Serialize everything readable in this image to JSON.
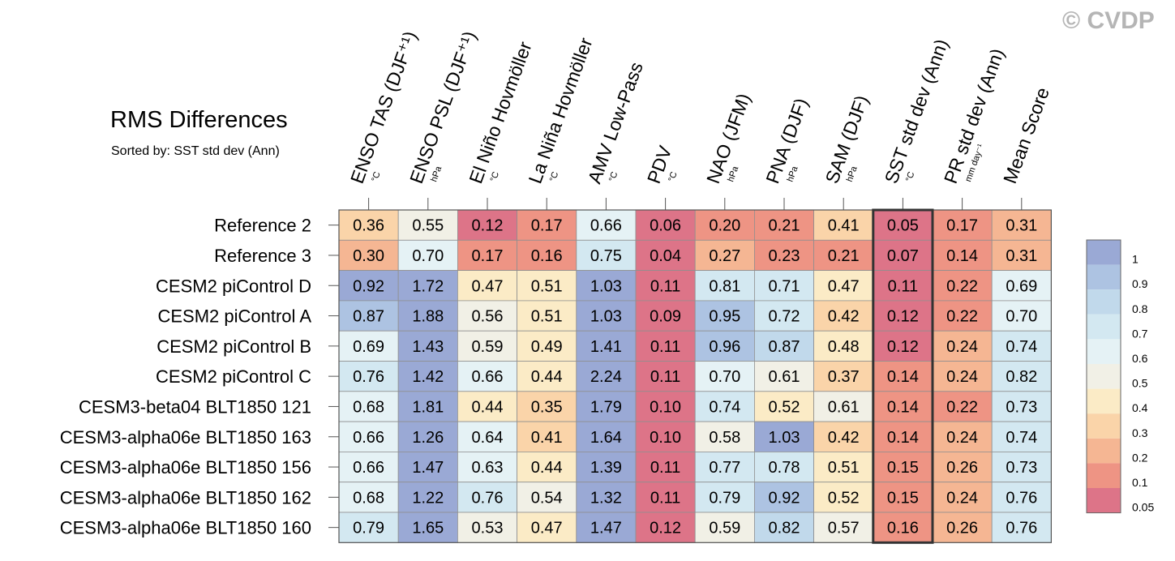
{
  "watermark": "© CVDP",
  "chart_data": {
    "type": "heatmap",
    "title": "RMS Differences",
    "subtitle": "Sorted by: SST std dev (Ann)",
    "columns": [
      {
        "label": "ENSO TAS (DJF⁺¹)",
        "unit": "°C"
      },
      {
        "label": "ENSO PSL (DJF⁺¹)",
        "unit": "hPa"
      },
      {
        "label": "El Niño Hovmöller",
        "unit": "°C"
      },
      {
        "label": "La Niña Hovmöller",
        "unit": "°C"
      },
      {
        "label": "AMV Low-Pass",
        "unit": "°C"
      },
      {
        "label": "PDV",
        "unit": "°C"
      },
      {
        "label": "NAO (JFM)",
        "unit": "hPa"
      },
      {
        "label": "PNA (DJF)",
        "unit": "hPa"
      },
      {
        "label": "SAM (DJF)",
        "unit": "hPa"
      },
      {
        "label": "SST std dev (Ann)",
        "unit": "°C"
      },
      {
        "label": "PR std dev (Ann)",
        "unit": "mm day⁻¹"
      },
      {
        "label": "Mean Score",
        "unit": ""
      }
    ],
    "highlighted_column": "SST std dev (Ann)",
    "rows": [
      {
        "label": "Reference 2",
        "values": [
          "0.36",
          "0.55",
          "0.12",
          "0.17",
          "0.66",
          "0.06",
          "0.20",
          "0.21",
          "0.41",
          "0.05",
          "0.17",
          "0.31"
        ],
        "scores": [
          0.3,
          0.52,
          0.08,
          0.12,
          0.64,
          0.02,
          0.16,
          0.17,
          0.35,
          0.01,
          0.12,
          0.26
        ]
      },
      {
        "label": "Reference 3",
        "values": [
          "0.30",
          "0.70",
          "0.17",
          "0.16",
          "0.75",
          "0.04",
          "0.27",
          "0.23",
          "0.21",
          "0.07",
          "0.14",
          "0.31"
        ],
        "scores": [
          0.26,
          0.66,
          0.12,
          0.12,
          0.72,
          0.0,
          0.22,
          0.18,
          0.16,
          0.03,
          0.1,
          0.26
        ]
      },
      {
        "label": "CESM2 piControl D",
        "values": [
          "0.92",
          "1.72",
          "0.47",
          "0.51",
          "1.03",
          "0.11",
          "0.81",
          "0.71",
          "0.47",
          "0.11",
          "0.22",
          "0.69"
        ],
        "scores": [
          1.0,
          1.0,
          0.43,
          0.48,
          1.0,
          0.07,
          0.78,
          0.72,
          0.43,
          0.07,
          0.18,
          0.65
        ]
      },
      {
        "label": "CESM2 piControl A",
        "values": [
          "0.87",
          "1.88",
          "0.56",
          "0.51",
          "1.03",
          "0.09",
          "0.95",
          "0.72",
          "0.42",
          "0.12",
          "0.22",
          "0.70"
        ],
        "scores": [
          0.95,
          1.0,
          0.52,
          0.48,
          1.0,
          0.05,
          0.92,
          0.74,
          0.37,
          0.08,
          0.18,
          0.66
        ]
      },
      {
        "label": "CESM2 piControl B",
        "values": [
          "0.69",
          "1.43",
          "0.59",
          "0.49",
          "1.41",
          "0.11",
          "0.96",
          "0.87",
          "0.48",
          "0.12",
          "0.24",
          "0.74"
        ],
        "scores": [
          0.66,
          1.0,
          0.55,
          0.45,
          1.0,
          0.07,
          0.93,
          0.88,
          0.44,
          0.08,
          0.2,
          0.7
        ]
      },
      {
        "label": "CESM2 piControl C",
        "values": [
          "0.76",
          "1.42",
          "0.66",
          "0.44",
          "2.24",
          "0.11",
          "0.70",
          "0.61",
          "0.37",
          "0.14",
          "0.24",
          "0.82"
        ],
        "scores": [
          0.72,
          1.0,
          0.62,
          0.4,
          1.0,
          0.07,
          0.66,
          0.58,
          0.32,
          0.1,
          0.2,
          0.78
        ]
      },
      {
        "label": "CESM3-beta04 BLT1850 121",
        "values": [
          "0.68",
          "1.81",
          "0.44",
          "0.35",
          "1.79",
          "0.10",
          "0.74",
          "0.52",
          "0.61",
          "0.14",
          "0.22",
          "0.73"
        ],
        "scores": [
          0.65,
          1.0,
          0.4,
          0.3,
          1.0,
          0.06,
          0.7,
          0.48,
          0.58,
          0.1,
          0.18,
          0.7
        ]
      },
      {
        "label": "CESM3-alpha06e BLT1850 163",
        "values": [
          "0.66",
          "1.26",
          "0.64",
          "0.41",
          "1.64",
          "0.10",
          "0.58",
          "1.03",
          "0.42",
          "0.14",
          "0.24",
          "0.74"
        ],
        "scores": [
          0.63,
          1.0,
          0.6,
          0.37,
          1.0,
          0.06,
          0.55,
          1.0,
          0.37,
          0.1,
          0.2,
          0.7
        ]
      },
      {
        "label": "CESM3-alpha06e BLT1850 156",
        "values": [
          "0.66",
          "1.47",
          "0.63",
          "0.44",
          "1.39",
          "0.11",
          "0.77",
          "0.78",
          "0.51",
          "0.15",
          "0.26",
          "0.73"
        ],
        "scores": [
          0.63,
          1.0,
          0.6,
          0.4,
          1.0,
          0.07,
          0.74,
          0.76,
          0.48,
          0.11,
          0.22,
          0.7
        ]
      },
      {
        "label": "CESM3-alpha06e BLT1850 162",
        "values": [
          "0.68",
          "1.22",
          "0.76",
          "0.54",
          "1.32",
          "0.11",
          "0.79",
          "0.92",
          "0.52",
          "0.15",
          "0.24",
          "0.76"
        ],
        "scores": [
          0.65,
          1.0,
          0.73,
          0.5,
          1.0,
          0.07,
          0.76,
          0.9,
          0.48,
          0.11,
          0.2,
          0.72
        ]
      },
      {
        "label": "CESM3-alpha06e BLT1850 160",
        "values": [
          "0.79",
          "1.65",
          "0.53",
          "0.47",
          "1.47",
          "0.12",
          "0.59",
          "0.82",
          "0.57",
          "0.16",
          "0.26",
          "0.76"
        ],
        "scores": [
          0.76,
          1.0,
          0.5,
          0.43,
          1.0,
          0.08,
          0.56,
          0.8,
          0.53,
          0.12,
          0.22,
          0.72
        ]
      }
    ],
    "colorbar": {
      "ticks": [
        "1",
        "0.9",
        "0.8",
        "0.7",
        "0.6",
        "0.5",
        "0.4",
        "0.3",
        "0.2",
        "0.1",
        "0.05"
      ],
      "colors": [
        "#9aa9d5",
        "#adc3e2",
        "#c1d9eb",
        "#d3e8f1",
        "#e5f2f5",
        "#f1f0e6",
        "#fbebc6",
        "#fad4a9",
        "#f5b693",
        "#ee9484",
        "#dd7488"
      ]
    }
  }
}
